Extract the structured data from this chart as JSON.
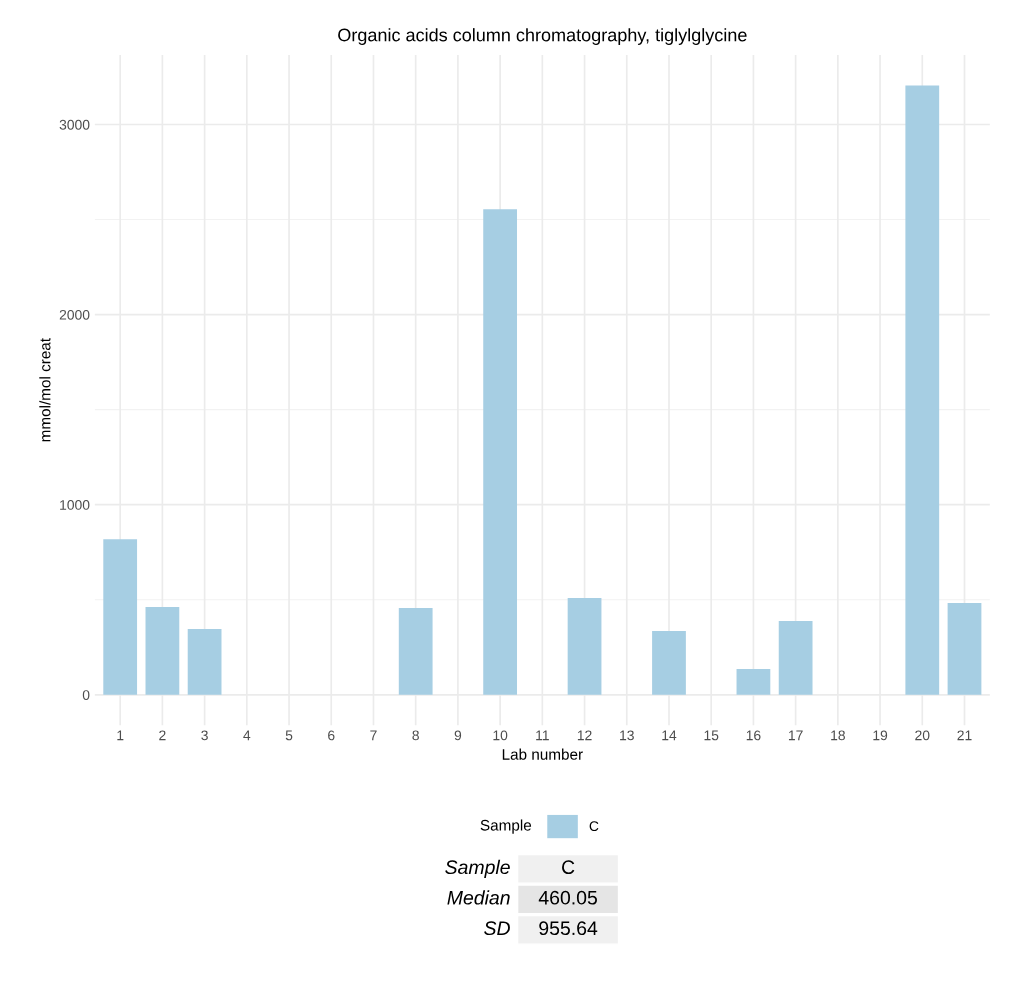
{
  "chart_data": {
    "type": "bar",
    "title": "Organic acids column chromatography, tiglylglycine",
    "xlabel": "Lab number",
    "ylabel": "mmol/mol creat",
    "legend_title": "Sample",
    "categories": [
      "1",
      "2",
      "3",
      "4",
      "5",
      "6",
      "7",
      "8",
      "9",
      "10",
      "11",
      "12",
      "13",
      "14",
      "15",
      "16",
      "17",
      "18",
      "19",
      "20",
      "21"
    ],
    "series": [
      {
        "name": "C",
        "color": "#a6cee3",
        "values": [
          818,
          462,
          346,
          null,
          null,
          null,
          null,
          456,
          null,
          2554,
          null,
          509,
          null,
          336,
          null,
          136,
          388,
          null,
          null,
          3205,
          483
        ]
      }
    ],
    "ylim": [
      -160,
      3365
    ],
    "yticks": [
      0,
      1000,
      2000,
      3000
    ],
    "grid": true,
    "legend": "bottom",
    "annotations": [
      "Sample",
      "C",
      "Median",
      "460.05",
      "SD",
      "955.64"
    ]
  }
}
